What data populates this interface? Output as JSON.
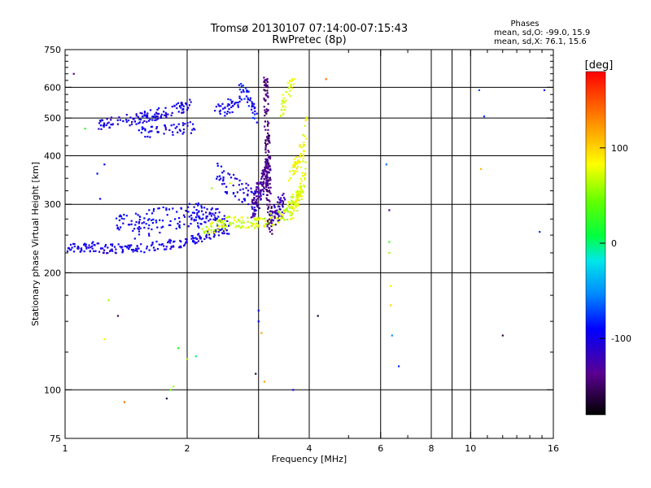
{
  "chart_data": {
    "type": "scatter",
    "title": "Tromsø 20130107 07:14:00-07:15:43",
    "subtitle": "RwPretec (8p)",
    "stats": {
      "heading": "Phases",
      "line1": "mean, sd,O: -99.0, 15.9",
      "line2": "mean, sd,X:  76.1, 15.6"
    },
    "xlabel": "Frequency [MHz]",
    "ylabel": "Stationary phase Virtual Height [km]",
    "x_scale": "log",
    "y_scale": "log",
    "xlim": [
      1,
      16
    ],
    "ylim": [
      75,
      750
    ],
    "grid": true,
    "x_ticks": [
      {
        "value": 1,
        "label": "1"
      },
      {
        "value": 2,
        "label": "2"
      },
      {
        "value": 4,
        "label": "4"
      },
      {
        "value": 6,
        "label": "6"
      },
      {
        "value": 8,
        "label": "8"
      },
      {
        "value": 10,
        "label": "10"
      },
      {
        "value": 16,
        "label": "16"
      }
    ],
    "x_gridlines": [
      2,
      3,
      4,
      6,
      8,
      9,
      10
    ],
    "y_ticks": [
      {
        "value": 75,
        "label": "75"
      },
      {
        "value": 100,
        "label": "100"
      },
      {
        "value": 200,
        "label": "200"
      },
      {
        "value": 300,
        "label": "300"
      },
      {
        "value": 400,
        "label": "400"
      },
      {
        "value": 500,
        "label": "500"
      },
      {
        "value": 600,
        "label": "600"
      },
      {
        "value": 750,
        "label": "750"
      }
    ],
    "y_gridlines": [
      100,
      200,
      300,
      400,
      500,
      600
    ],
    "colorbar": {
      "label": "[deg]",
      "range": [
        -180,
        180
      ],
      "ticks": [
        {
          "value": 100,
          "label": "100"
        },
        {
          "value": 0,
          "label": "0"
        },
        {
          "value": -100,
          "label": "-100"
        }
      ]
    },
    "point_groups": [
      {
        "segments": [
          [
            1.0,
            232,
            1.2,
            234
          ],
          [
            1.2,
            232,
            1.5,
            229
          ],
          [
            1.5,
            229,
            2.0,
            241
          ],
          [
            2.0,
            241,
            2.55,
            259
          ]
        ],
        "phase": -100,
        "jitter_h": 0.025,
        "n": 200
      },
      {
        "segments": [
          [
            1.35,
            270,
            1.6,
            280
          ],
          [
            1.6,
            280,
            2.1,
            289
          ],
          [
            2.1,
            289,
            2.4,
            285
          ]
        ],
        "phase": -95,
        "jitter_h": 0.04,
        "n": 110
      },
      {
        "segments": [
          [
            1.45,
            252,
            2.0,
            270
          ],
          [
            2.0,
            270,
            2.5,
            272
          ]
        ],
        "phase": -98,
        "jitter_h": 0.03,
        "n": 60
      },
      {
        "segments": [
          [
            1.2,
            480,
            1.55,
            500
          ],
          [
            1.55,
            500,
            2.05,
            540
          ]
        ],
        "phase": -102,
        "jitter_h": 0.03,
        "n": 130
      },
      {
        "segments": [
          [
            1.5,
            458,
            2.08,
            475
          ]
        ],
        "phase": -100,
        "jitter_h": 0.03,
        "n": 50
      },
      {
        "segments": [
          [
            2.35,
            525,
            2.7,
            545
          ]
        ],
        "phase": -98,
        "jitter_h": 0.04,
        "n": 40
      },
      {
        "segments": [
          [
            2.7,
            610,
            2.85,
            560
          ],
          [
            2.85,
            560,
            2.98,
            500
          ]
        ],
        "phase": -90,
        "jitter_h": 0.03,
        "n": 40
      },
      {
        "segments": [
          [
            2.35,
            360,
            2.75,
            320
          ],
          [
            2.75,
            320,
            3.05,
            300
          ]
        ],
        "phase": -100,
        "jitter_h": 0.06,
        "n": 70
      },
      {
        "segments": [
          [
            3.12,
            640,
            3.2,
            250
          ]
        ],
        "phase": -145,
        "jitter_h": 0.01,
        "n": 150
      },
      {
        "segments": [
          [
            2.9,
            290,
            3.2,
            390
          ]
        ],
        "phase": -130,
        "jitter_h": 0.05,
        "n": 120
      },
      {
        "segments": [
          [
            3.2,
            270,
            3.5,
            310
          ]
        ],
        "phase": -122,
        "jitter_h": 0.05,
        "n": 60
      },
      {
        "segments": [
          [
            2.2,
            258,
            2.55,
            270
          ],
          [
            2.55,
            270,
            3.0,
            268
          ],
          [
            3.0,
            268,
            3.5,
            282
          ],
          [
            3.5,
            282,
            3.8,
            330
          ]
        ],
        "phase": 70,
        "jitter_h": 0.03,
        "n": 170
      },
      {
        "segments": [
          [
            3.6,
            280,
            3.85,
            330
          ],
          [
            3.85,
            330,
            3.9,
            500
          ]
        ],
        "phase": 78,
        "jitter_h": 0.03,
        "n": 80
      },
      {
        "segments": [
          [
            3.4,
            520,
            3.65,
            640
          ]
        ],
        "phase": 78,
        "jitter_h": 0.04,
        "n": 35
      },
      {
        "segments": [
          [
            3.6,
            350,
            3.85,
            420
          ]
        ],
        "phase": 85,
        "jitter_h": 0.03,
        "n": 40
      }
    ],
    "scattered_points": [
      [
        1.05,
        650,
        -140
      ],
      [
        1.12,
        470,
        20
      ],
      [
        1.2,
        360,
        -90
      ],
      [
        1.25,
        380,
        -90
      ],
      [
        1.22,
        310,
        -95
      ],
      [
        1.28,
        170,
        60
      ],
      [
        1.25,
        135,
        80
      ],
      [
        1.35,
        155,
        -150
      ],
      [
        1.4,
        93,
        140
      ],
      [
        1.85,
        102,
        60
      ],
      [
        1.82,
        100,
        40
      ],
      [
        1.78,
        95,
        -160
      ],
      [
        1.9,
        128,
        20
      ],
      [
        2.1,
        122,
        0
      ],
      [
        2.0,
        120,
        60
      ],
      [
        2.3,
        330,
        60
      ],
      [
        2.55,
        340,
        70
      ],
      [
        2.95,
        110,
        -160
      ],
      [
        3.0,
        150,
        -90
      ],
      [
        3.0,
        160,
        -95
      ],
      [
        3.05,
        140,
        120
      ],
      [
        3.1,
        105,
        120
      ],
      [
        3.65,
        100,
        -95
      ],
      [
        4.2,
        155,
        -170
      ],
      [
        4.4,
        630,
        140
      ],
      [
        6.2,
        380,
        -60
      ],
      [
        6.3,
        290,
        -140
      ],
      [
        6.3,
        240,
        30
      ],
      [
        6.35,
        185,
        90
      ],
      [
        6.35,
        165,
        100
      ],
      [
        6.4,
        138,
        -50
      ],
      [
        6.65,
        115,
        -80
      ],
      [
        6.3,
        225,
        60
      ],
      [
        10.5,
        590,
        -70
      ],
      [
        10.8,
        505,
        -80
      ],
      [
        10.6,
        370,
        110
      ],
      [
        12.0,
        138,
        -160
      ],
      [
        14.8,
        255,
        -80
      ],
      [
        15.2,
        590,
        -85
      ]
    ]
  }
}
